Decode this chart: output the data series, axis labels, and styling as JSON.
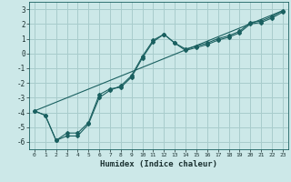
{
  "xlabel": "Humidex (Indice chaleur)",
  "background_color": "#cce8e8",
  "grid_color": "#a8cccc",
  "line_color": "#1a6060",
  "xlim": [
    -0.5,
    23.5
  ],
  "ylim": [
    -6.5,
    3.5
  ],
  "xticks": [
    0,
    1,
    2,
    3,
    4,
    5,
    6,
    7,
    8,
    9,
    10,
    11,
    12,
    13,
    14,
    15,
    16,
    17,
    18,
    19,
    20,
    21,
    22,
    23
  ],
  "yticks": [
    -6,
    -5,
    -4,
    -3,
    -2,
    -1,
    0,
    1,
    2,
    3
  ],
  "line1_x": [
    0,
    1,
    2,
    3,
    4,
    5,
    6,
    7,
    8,
    9,
    10,
    11,
    12,
    13,
    14,
    15,
    16,
    17,
    18,
    19,
    20,
    21,
    22,
    23
  ],
  "line1_y": [
    -3.9,
    -4.2,
    -5.9,
    -5.4,
    -5.4,
    -4.7,
    -2.8,
    -2.4,
    -2.3,
    -1.6,
    -0.3,
    0.8,
    1.3,
    0.7,
    0.3,
    0.5,
    0.7,
    1.0,
    1.2,
    1.5,
    2.1,
    2.2,
    2.5,
    2.9
  ],
  "line2_x": [
    0,
    1,
    2,
    3,
    4,
    5,
    6,
    7,
    8,
    9,
    10,
    11,
    12,
    13,
    14,
    15,
    16,
    17,
    18,
    19,
    20,
    21,
    22,
    23
  ],
  "line2_y": [
    -3.9,
    -4.2,
    -5.9,
    -5.6,
    -5.6,
    -4.8,
    -3.0,
    -2.5,
    -2.2,
    -1.5,
    -0.2,
    0.9,
    1.3,
    0.7,
    0.2,
    0.4,
    0.6,
    0.9,
    1.1,
    1.4,
    2.0,
    2.1,
    2.4,
    2.8
  ],
  "line3_x": [
    0,
    23
  ],
  "line3_y": [
    -3.9,
    2.9
  ]
}
